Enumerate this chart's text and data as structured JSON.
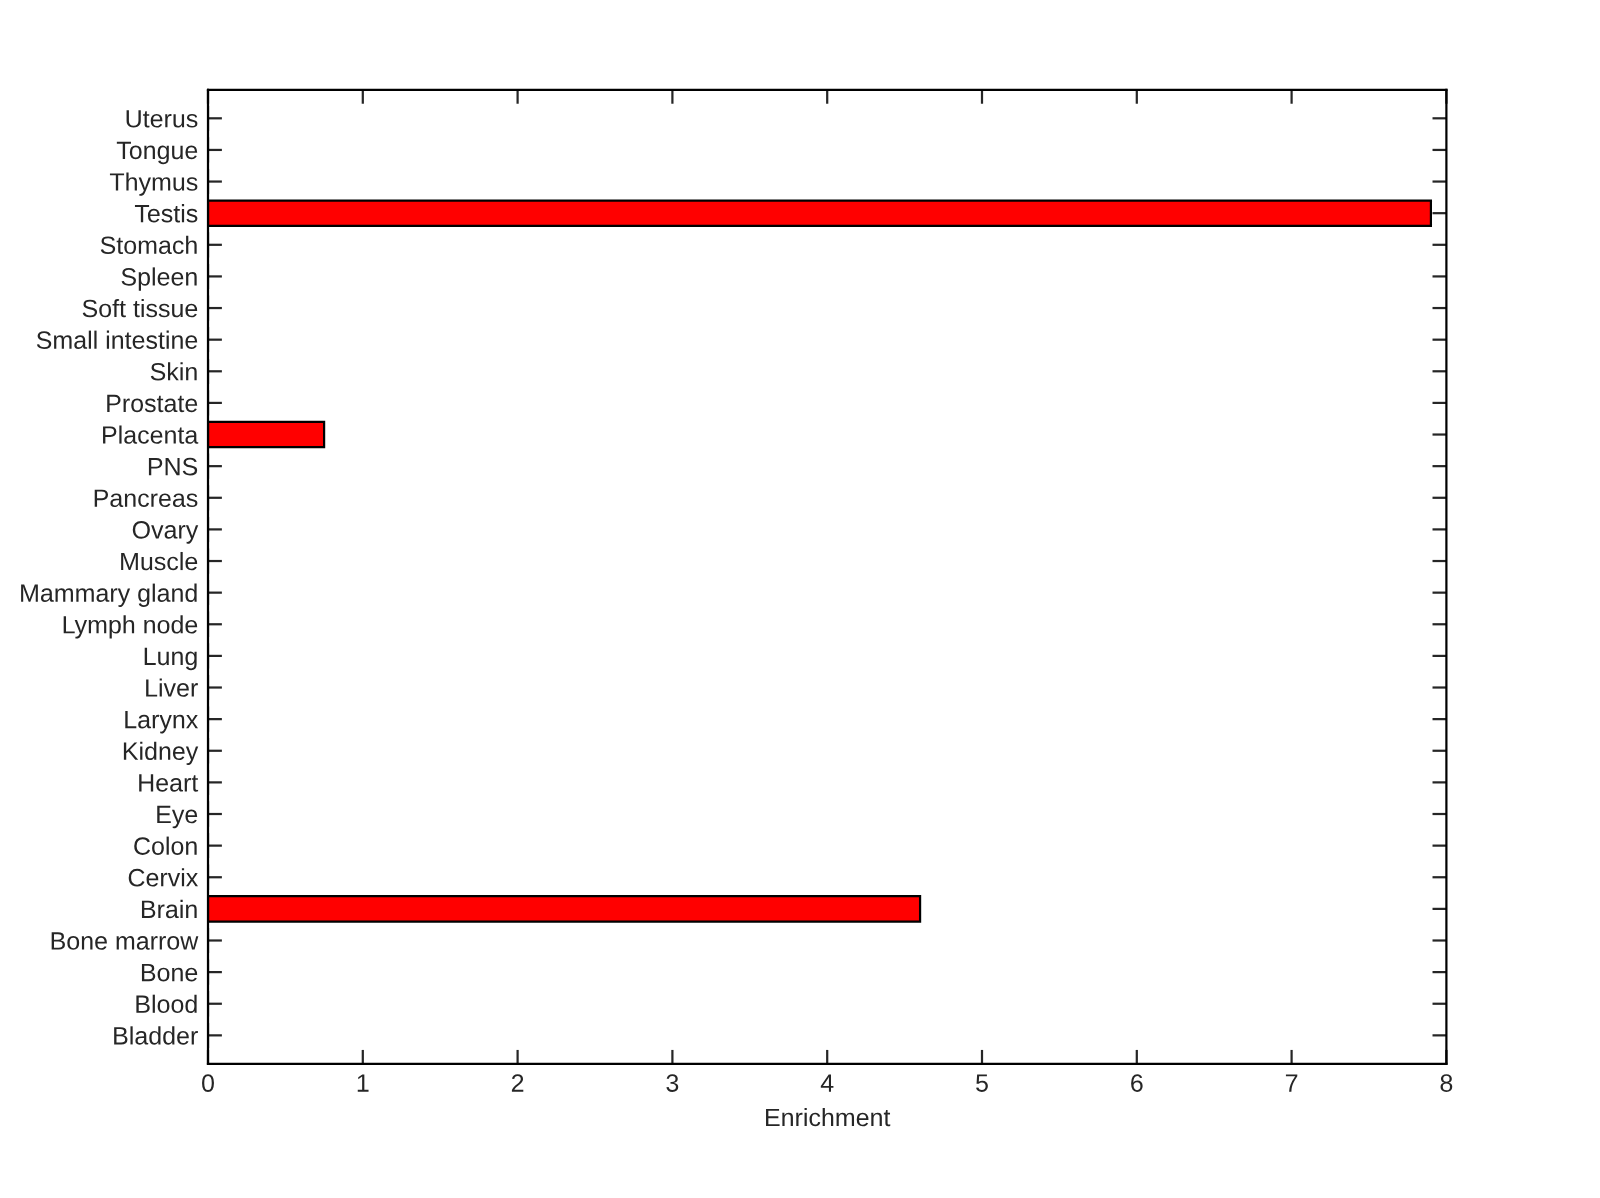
{
  "chart_data": {
    "type": "bar",
    "orientation": "horizontal",
    "xlabel": "Enrichment",
    "categories": [
      "Uterus",
      "Tongue",
      "Thymus",
      "Testis",
      "Stomach",
      "Spleen",
      "Soft tissue",
      "Small intestine",
      "Skin",
      "Prostate",
      "Placenta",
      "PNS",
      "Pancreas",
      "Ovary",
      "Muscle",
      "Mammary gland",
      "Lymph node",
      "Lung",
      "Liver",
      "Larynx",
      "Kidney",
      "Heart",
      "Eye",
      "Colon",
      "Cervix",
      "Brain",
      "Bone marrow",
      "Bone",
      "Blood",
      "Bladder"
    ],
    "values": [
      0,
      0,
      0,
      7.9,
      0,
      0,
      0,
      0,
      0,
      0,
      0.75,
      0,
      0,
      0,
      0,
      0,
      0,
      0,
      0,
      0,
      0,
      0,
      0,
      0,
      0,
      4.6,
      0,
      0,
      0,
      0
    ],
    "color": "#ff0000",
    "xlim": [
      0,
      8
    ],
    "xticks": [
      0,
      1,
      2,
      3,
      4,
      5,
      6,
      7,
      8
    ],
    "grid": false
  }
}
